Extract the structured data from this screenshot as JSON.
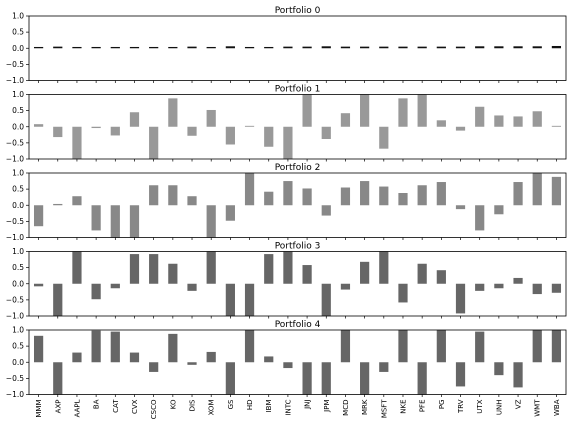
{
  "chart_data": {
    "type": "bar",
    "categories": [
      "MMM",
      "AXP",
      "AAPL",
      "BA",
      "CAT",
      "CVX",
      "CSCO",
      "KO",
      "DIS",
      "XOM",
      "GS",
      "HD",
      "IBM",
      "INTC",
      "JNJ",
      "JPM",
      "MCD",
      "MRK",
      "MSFT",
      "NKE",
      "PFE",
      "PG",
      "TRV",
      "UTX",
      "UNH",
      "VZ",
      "WMT",
      "WBA"
    ],
    "ylim": [
      -1.0,
      1.0
    ],
    "yticks": [
      "1.0",
      "0.5",
      "0.0",
      "-0.5",
      "-1.0"
    ],
    "panels": [
      {
        "title": "Portfolio 0",
        "color": "#111111",
        "values": [
          0.04,
          0.05,
          0.04,
          0.04,
          0.04,
          0.04,
          0.04,
          0.04,
          0.05,
          0.04,
          0.06,
          0.04,
          0.04,
          0.05,
          0.05,
          0.06,
          0.05,
          0.05,
          0.05,
          0.05,
          0.05,
          0.05,
          0.05,
          0.06,
          0.06,
          0.06,
          0.06,
          0.07
        ]
      },
      {
        "title": "Portfolio 1",
        "color": "#999999",
        "values": [
          0.08,
          -0.32,
          -1.0,
          -0.04,
          -0.27,
          0.45,
          -1.0,
          0.88,
          -0.28,
          0.52,
          -0.55,
          0.02,
          -0.62,
          -1.0,
          1.0,
          -0.38,
          0.42,
          1.0,
          -0.68,
          0.88,
          1.0,
          0.2,
          -0.12,
          0.62,
          0.35,
          0.32,
          0.48,
          0.0
        ]
      },
      {
        "title": "Portfolio 2",
        "color": "#888888",
        "values": [
          -0.65,
          0.04,
          0.28,
          -0.78,
          -1.0,
          -1.0,
          0.62,
          0.62,
          0.28,
          -1.0,
          -0.48,
          1.0,
          0.42,
          0.75,
          0.52,
          -0.32,
          0.55,
          0.75,
          0.58,
          0.38,
          0.62,
          0.72,
          -0.12,
          -0.78,
          -0.28,
          0.72,
          1.0,
          0.88
        ]
      },
      {
        "title": "Portfolio 3",
        "color": "#666666",
        "values": [
          -0.08,
          -1.0,
          1.0,
          -0.48,
          -0.14,
          0.92,
          0.92,
          0.62,
          -0.22,
          1.0,
          -1.0,
          -1.0,
          0.92,
          1.0,
          0.58,
          -1.0,
          -0.18,
          0.68,
          1.0,
          -0.58,
          0.62,
          0.42,
          -0.92,
          -0.22,
          -0.14,
          0.18,
          -0.32,
          -0.28
        ]
      },
      {
        "title": "Portfolio 4",
        "color": "#666666",
        "values": [
          0.82,
          -1.0,
          0.3,
          0.98,
          0.95,
          0.3,
          -0.3,
          0.88,
          -0.08,
          0.32,
          -1.0,
          1.0,
          0.18,
          -0.18,
          -1.0,
          -1.0,
          1.0,
          -1.0,
          -0.3,
          1.0,
          -1.0,
          1.0,
          -0.75,
          0.95,
          -0.4,
          -0.78,
          1.0,
          1.0
        ]
      }
    ]
  }
}
